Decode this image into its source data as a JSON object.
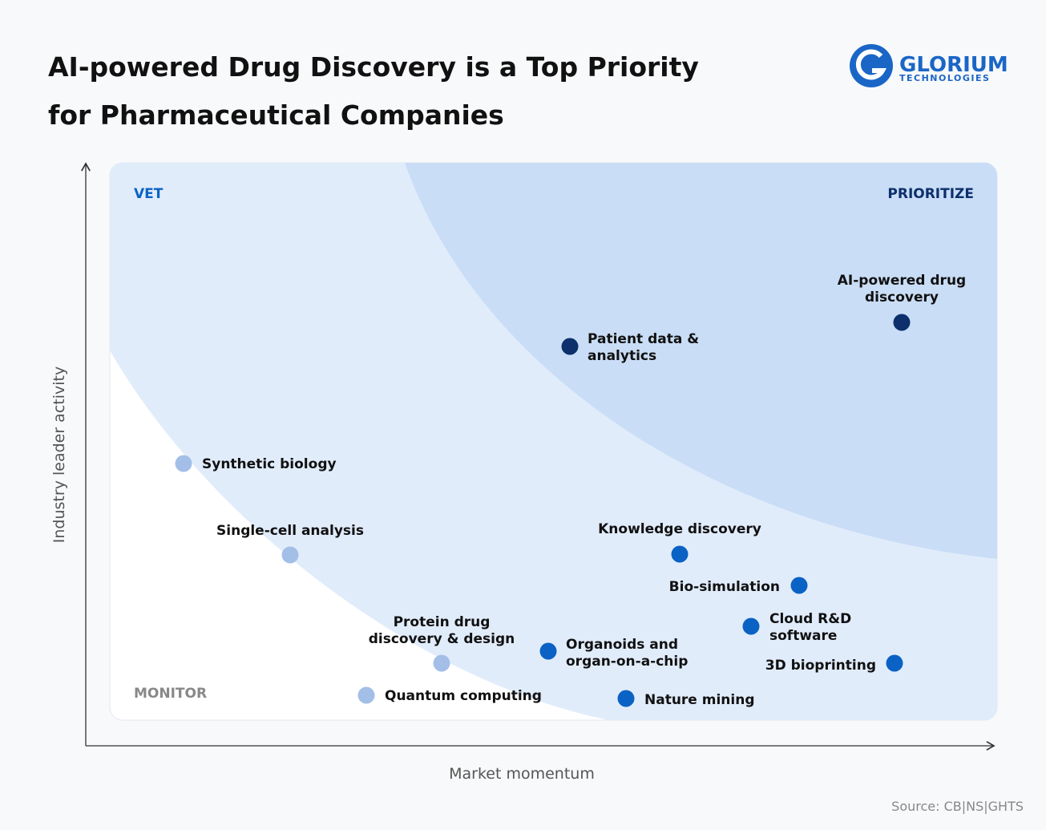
{
  "header": {
    "title": "AI-powered Drug Discovery is a Top Priority for Pharmaceutical Companies",
    "logo": {
      "name": "GLORIUM",
      "tagline": "TECHNOLOGIES"
    }
  },
  "quadrants": {
    "top_left": "VET",
    "top_right": "PRIORITIZE",
    "bottom_left": "MONITOR"
  },
  "axes": {
    "x": "Market momentum",
    "y": "Industry leader activity"
  },
  "nodes": [
    {
      "label": [
        "AI-powered drug",
        "discovery"
      ],
      "color": "#0d2f6b"
    },
    {
      "label": [
        "Patient data &",
        "analytics"
      ],
      "color": "#0d2f6b"
    },
    {
      "label": [
        "Synthetic biology"
      ],
      "color": "#a3bfe8"
    },
    {
      "label": [
        "Single-cell analysis"
      ],
      "color": "#a3bfe8"
    },
    {
      "label": [
        "Knowledge discovery"
      ],
      "color": "#0a62c4"
    },
    {
      "label": [
        "Bio-simulation"
      ],
      "color": "#0a62c4"
    },
    {
      "label": [
        "Cloud R&D",
        "software"
      ],
      "color": "#0a62c4"
    },
    {
      "label": [
        "3D bioprinting"
      ],
      "color": "#0a62c4"
    },
    {
      "label": [
        "Protein drug",
        "discovery & design"
      ],
      "color": "#a3bfe8"
    },
    {
      "label": [
        "Organoids and",
        "organ-on-a-chip"
      ],
      "color": "#0a62c4"
    },
    {
      "label": [
        "Quantum computing"
      ],
      "color": "#a3bfe8"
    },
    {
      "label": [
        "Nature mining"
      ],
      "color": "#0a62c4"
    }
  ],
  "source": "Source: CB|NS|GHTS"
}
